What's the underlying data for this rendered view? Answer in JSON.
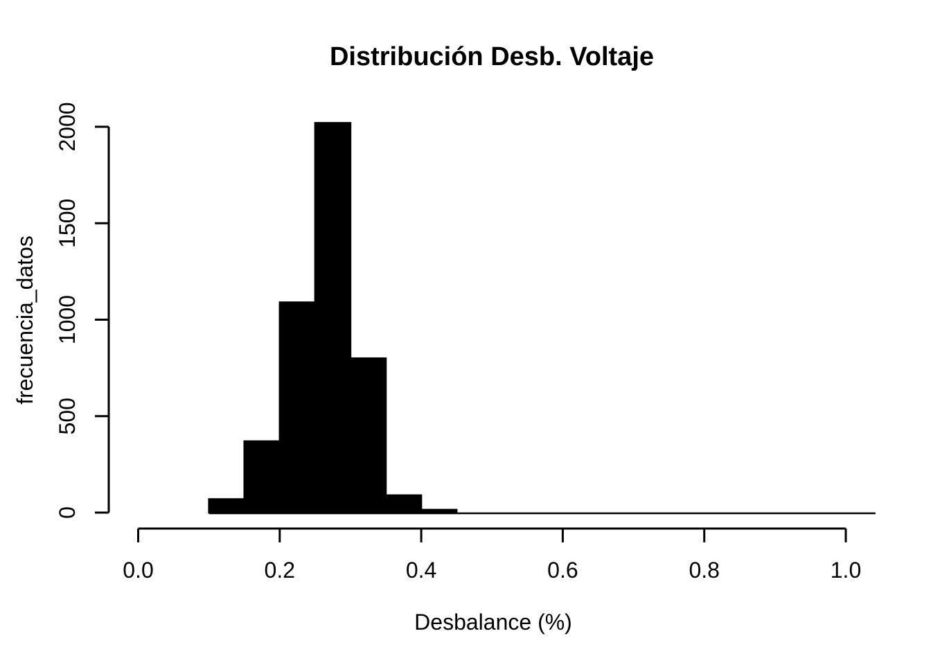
{
  "chart_data": {
    "type": "bar",
    "subtype": "histogram",
    "title": "Distribución Desb. Voltaje",
    "xlabel": "Desbalance (%)",
    "ylabel": "frecuencia_datos",
    "bin_width": 0.05,
    "bin_edges": [
      0.1,
      0.15,
      0.2,
      0.25,
      0.3,
      0.35,
      0.4,
      0.45,
      0.5,
      0.55,
      0.6,
      0.65,
      0.7,
      0.75,
      0.8,
      0.85,
      0.9,
      0.95,
      1.0,
      1.05
    ],
    "counts": [
      70,
      370,
      1090,
      2020,
      800,
      90,
      15,
      0,
      0,
      0,
      0,
      0,
      0,
      0,
      0,
      0,
      0,
      0,
      0
    ],
    "x_ticks": [
      0.0,
      0.2,
      0.4,
      0.6,
      0.8,
      1.0
    ],
    "x_tick_labels": [
      "0.0",
      "0.2",
      "0.4",
      "0.6",
      "0.8",
      "1.0"
    ],
    "y_ticks": [
      0,
      500,
      1000,
      1500,
      2000
    ],
    "y_tick_labels": [
      "0",
      "500",
      "1000",
      "1500",
      "2000"
    ],
    "xlim": [
      0.0,
      1.042
    ],
    "ylim": [
      0,
      2000
    ],
    "grid": false,
    "legend": "none",
    "bar_color": "#000000",
    "axis_color": "#000000",
    "text_color": "#000000",
    "background_color": "#ffffff"
  }
}
